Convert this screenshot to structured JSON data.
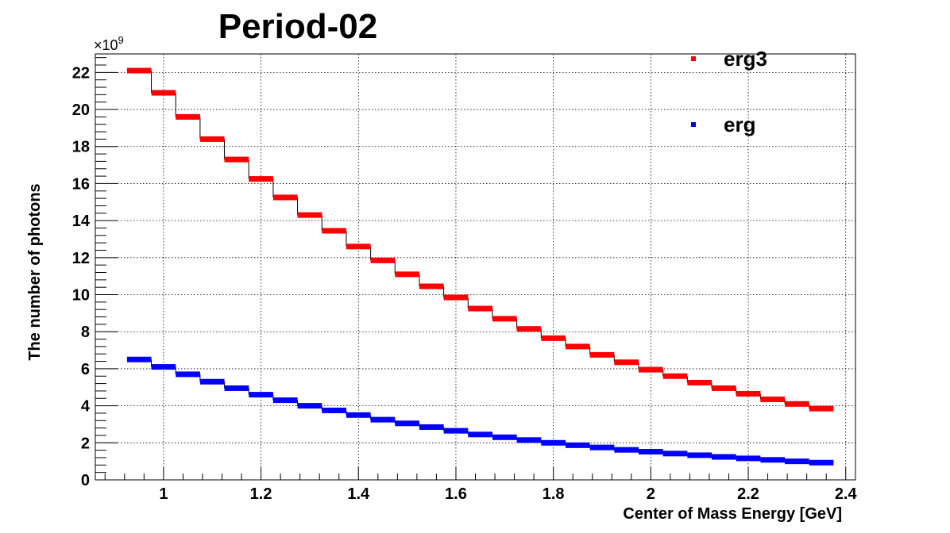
{
  "chart_data": {
    "type": "line",
    "style": "histogram-steps",
    "title": "Period-02",
    "xlabel": "Center of Mass Energy [GeV]",
    "ylabel": "The number of photons",
    "y_multiplier": "×10",
    "y_exponent": "9",
    "xlim": [
      0.86,
      2.42
    ],
    "ylim": [
      0,
      23
    ],
    "grid": true,
    "legend_position": "top-right",
    "x_ticks": [
      1,
      1.2,
      1.4,
      1.6,
      1.8,
      2,
      2.2,
      2.4
    ],
    "x_tick_labels": [
      "1",
      "1.2",
      "1.4",
      "1.6",
      "1.8",
      "2",
      "2.2",
      "2.4"
    ],
    "y_ticks": [
      0,
      2,
      4,
      6,
      8,
      10,
      12,
      14,
      16,
      18,
      20,
      22
    ],
    "y_tick_labels": [
      "0",
      "2",
      "4",
      "6",
      "8",
      "10",
      "12",
      "14",
      "16",
      "18",
      "20",
      "22"
    ],
    "bin_edges": [
      0.925,
      0.975,
      1.025,
      1.075,
      1.125,
      1.175,
      1.225,
      1.275,
      1.325,
      1.375,
      1.425,
      1.475,
      1.525,
      1.575,
      1.625,
      1.675,
      1.725,
      1.775,
      1.825,
      1.875,
      1.925,
      1.975,
      2.025,
      2.075,
      2.125,
      2.175,
      2.225,
      2.275,
      2.325,
      2.375
    ],
    "series": [
      {
        "name": "erg3",
        "color": "#ff0000",
        "values": [
          22.1,
          20.9,
          19.6,
          18.4,
          17.3,
          16.25,
          15.25,
          14.3,
          13.45,
          12.6,
          11.85,
          11.1,
          10.45,
          9.85,
          9.25,
          8.7,
          8.15,
          7.65,
          7.2,
          6.75,
          6.35,
          5.95,
          5.6,
          5.25,
          4.95,
          4.65,
          4.35,
          4.1,
          3.85
        ]
      },
      {
        "name": "erg",
        "color": "#0000ff",
        "values": [
          6.5,
          6.1,
          5.7,
          5.3,
          4.95,
          4.6,
          4.3,
          4.0,
          3.75,
          3.5,
          3.25,
          3.05,
          2.85,
          2.65,
          2.45,
          2.3,
          2.15,
          2.0,
          1.87,
          1.75,
          1.62,
          1.52,
          1.42,
          1.33,
          1.24,
          1.16,
          1.08,
          1.0,
          0.93
        ]
      }
    ]
  }
}
